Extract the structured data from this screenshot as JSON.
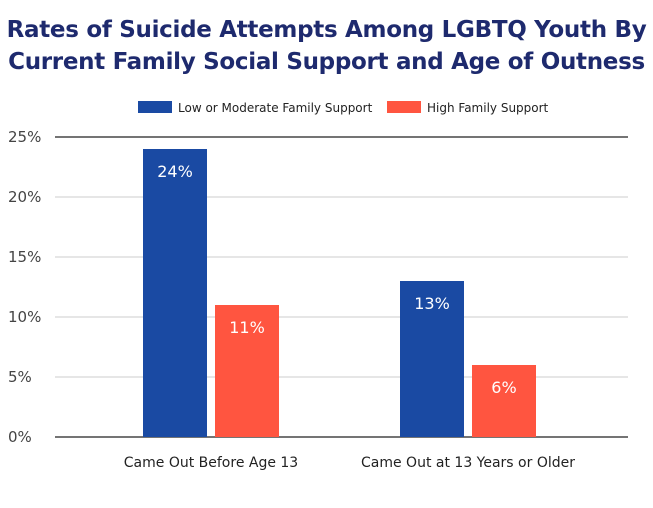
{
  "chart_data": {
    "type": "bar",
    "title_lines": [
      "Rates of Suicide Attempts Among LGBTQ Youth By",
      "Current Family Social Support and Age of Outness"
    ],
    "categories": [
      "Came Out Before Age 13",
      "Came Out at 13 Years or Older"
    ],
    "series": [
      {
        "name": "Low or Moderate Family Support",
        "values": [
          24,
          13
        ],
        "labels": [
          "24%",
          "13%"
        ],
        "color": "#1a4aa3"
      },
      {
        "name": "High Family Support",
        "values": [
          11,
          6
        ],
        "labels": [
          "11%",
          "6%"
        ],
        "color": "#ff5540"
      }
    ],
    "yticks": [
      "0%",
      "5%",
      "10%",
      "15%",
      "20%",
      "25%"
    ],
    "ylim": [
      0,
      25
    ],
    "xlabel": "",
    "ylabel": "",
    "grid": true,
    "legend_position": "top-center"
  },
  "colors": {
    "title": "#1e2a6e",
    "grid": "#cccccc",
    "axis": "#222222"
  }
}
